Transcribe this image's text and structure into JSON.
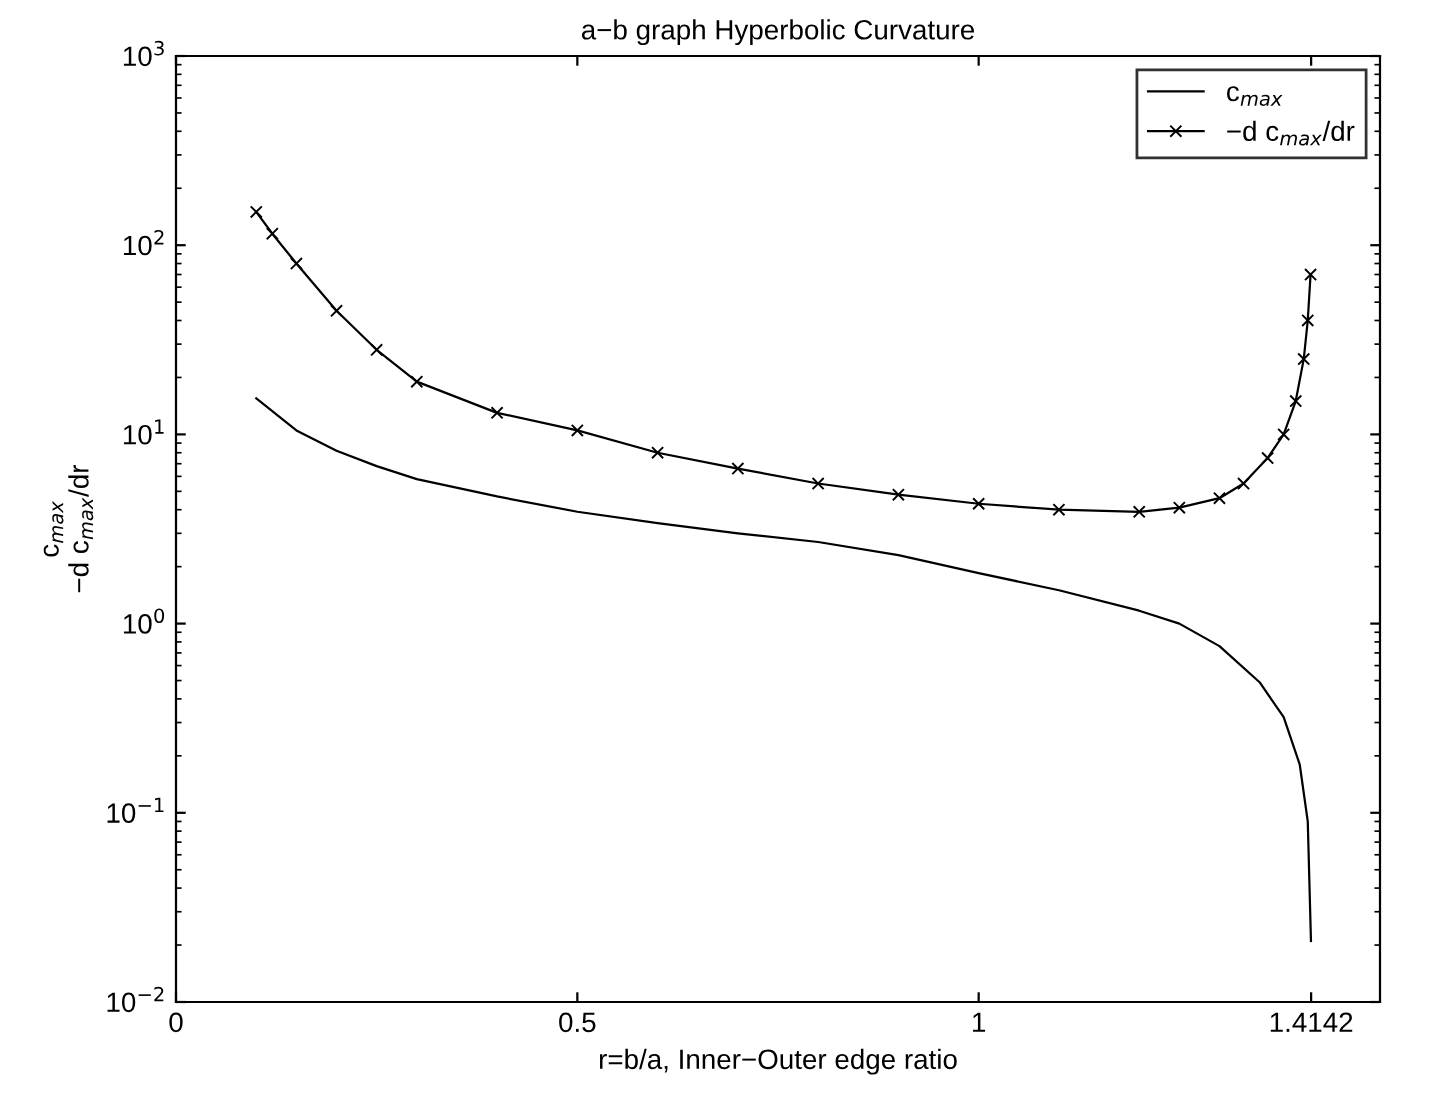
{
  "chart_data": {
    "type": "line",
    "title": "a−b graph Hyperbolic Curvature",
    "xlabel": "r=b/a, Inner−Outer edge ratio",
    "ylabel": "c$_{max}$\n−d c$_{max}$/dr",
    "series": [
      {
        "name": "c$_{max}$",
        "color": "#000000",
        "marker": "none",
        "x": [
          0.1,
          0.15,
          0.2,
          0.25,
          0.3,
          0.4,
          0.5,
          0.6,
          0.7,
          0.8,
          0.9,
          1.0,
          1.1,
          1.2,
          1.25,
          1.3,
          1.35,
          1.38,
          1.4,
          1.41,
          1.414
        ],
        "values": [
          15.5,
          10.5,
          8.2,
          6.8,
          5.8,
          4.7,
          3.9,
          3.4,
          3.0,
          2.7,
          2.3,
          1.85,
          1.5,
          1.17,
          1.0,
          0.76,
          0.49,
          0.32,
          0.18,
          0.09,
          0.021
        ]
      },
      {
        "name": "−d c$_{max}$/dr",
        "color": "#000000",
        "marker": "cross",
        "x": [
          0.1,
          0.12,
          0.15,
          0.2,
          0.25,
          0.3,
          0.4,
          0.5,
          0.6,
          0.7,
          0.8,
          0.9,
          1.0,
          1.1,
          1.2,
          1.25,
          1.3,
          1.33,
          1.36,
          1.38,
          1.395,
          1.405,
          1.41,
          1.4135
        ],
        "values": [
          150,
          115,
          80,
          45,
          28,
          19,
          13,
          10.5,
          8,
          6.6,
          5.5,
          4.8,
          4.3,
          4.0,
          3.9,
          4.1,
          4.6,
          5.5,
          7.5,
          10,
          15,
          25,
          40,
          70
        ]
      }
    ],
    "log": "y",
    "xlim": [
      0,
      1.5
    ],
    "ylim": [
      0.01,
      1000
    ],
    "xticks": [
      0,
      0.5,
      1,
      1.4142
    ],
    "yticks": [
      {
        "value": 0.01,
        "label": "10$^{−2}$"
      },
      {
        "value": 0.1,
        "label": "10$^{−1}$"
      },
      {
        "value": 1,
        "label": "10$^{0}$"
      },
      {
        "value": 10,
        "label": "10$^{1}$"
      },
      {
        "value": 100,
        "label": "10$^{2}$"
      },
      {
        "value": 1000,
        "label": "10$^{3}$"
      }
    ],
    "grid": false,
    "legend": "top right",
    "line_style": "solid"
  }
}
